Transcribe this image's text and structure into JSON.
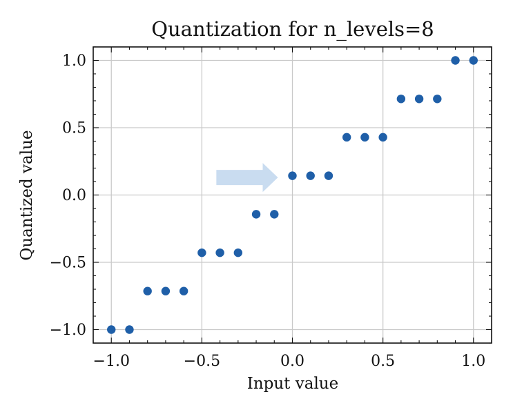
{
  "colors": {
    "point": "#1f5fa8",
    "grid": "#c9c9c9",
    "axis": "#111111",
    "arrow": "#c9dcf0"
  },
  "chart_data": {
    "type": "scatter",
    "title": "Quantization for n_levels=8",
    "xlabel": "Input value",
    "ylabel": "Quantized value",
    "xlim": [
      -1.1,
      1.1
    ],
    "ylim": [
      -1.1,
      1.1
    ],
    "xticks": [
      {
        "value": -1.0,
        "label": "−1.0"
      },
      {
        "value": -0.5,
        "label": "−0.5"
      },
      {
        "value": 0.0,
        "label": "0.0"
      },
      {
        "value": 0.5,
        "label": "0.5"
      },
      {
        "value": 1.0,
        "label": "1.0"
      }
    ],
    "yticks": [
      {
        "value": -1.0,
        "label": "−1.0"
      },
      {
        "value": -0.5,
        "label": "−0.5"
      },
      {
        "value": 0.0,
        "label": "0.0"
      },
      {
        "value": 0.5,
        "label": "0.5"
      },
      {
        "value": 1.0,
        "label": "1.0"
      }
    ],
    "grid": true,
    "x": [
      -1.0,
      -0.9,
      -0.8,
      -0.7,
      -0.6,
      -0.5,
      -0.4,
      -0.3,
      -0.2,
      -0.1,
      0.0,
      0.1,
      0.2,
      0.3,
      0.4,
      0.5,
      0.6,
      0.7,
      0.8,
      0.9,
      1.0
    ],
    "y": [
      -1.0,
      -1.0,
      -0.714,
      -0.714,
      -0.714,
      -0.429,
      -0.429,
      -0.429,
      -0.143,
      -0.143,
      0.143,
      0.143,
      0.143,
      0.429,
      0.429,
      0.429,
      0.714,
      0.714,
      0.714,
      1.0,
      1.0
    ],
    "annotations": [
      {
        "type": "arrow",
        "from": [
          -0.42,
          0.13
        ],
        "to": [
          -0.08,
          0.13
        ],
        "points_to": [
          0.0,
          0.143
        ]
      }
    ]
  }
}
